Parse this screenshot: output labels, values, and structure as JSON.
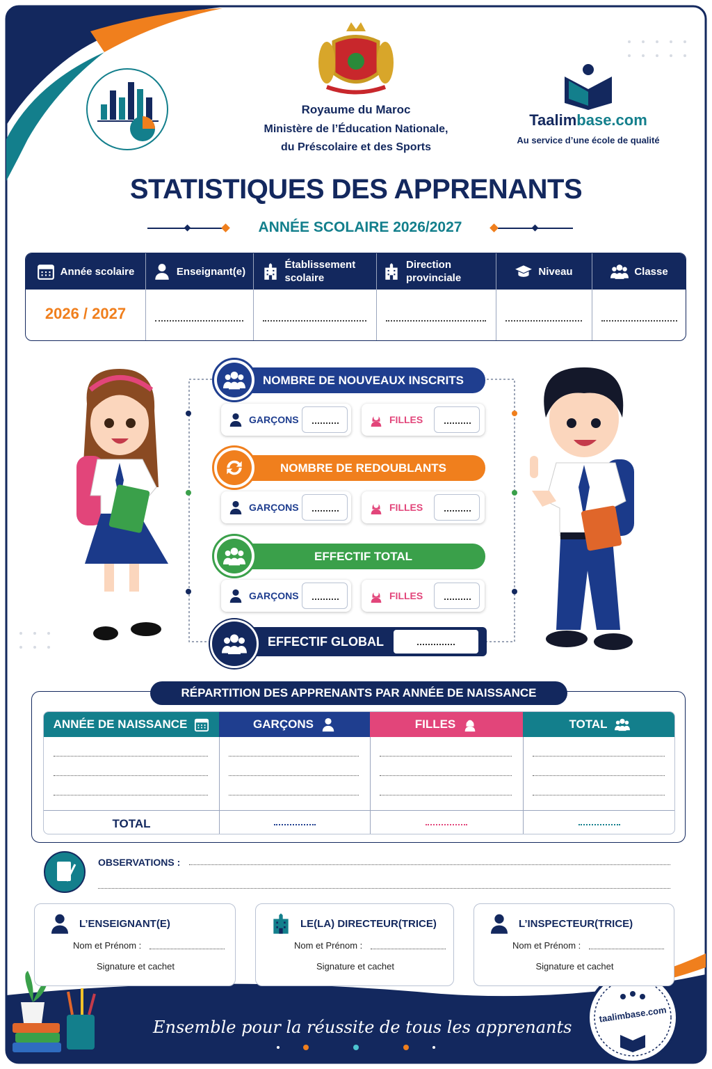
{
  "header": {
    "kingdom": "Royaume du Maroc",
    "ministry_line1": "Ministère de l’Éducation Nationale,",
    "ministry_line2": "du Préscolaire et des Sports"
  },
  "brand": {
    "name_part1": "Taalim",
    "name_part2": "base.com",
    "tagline": "Au service d’une école de qualité"
  },
  "title": "STATISTIQUES DES APPRENANTS",
  "subtitle": "ANNÉE SCOLAIRE 2026/2027",
  "info_table": {
    "headers": [
      "Année scolaire",
      "Enseignant(e)",
      "Établissement scolaire",
      "Direction provinciale",
      "Niveau",
      "Classe"
    ],
    "school_year_value": "2026 / 2027"
  },
  "counts": {
    "sections": [
      {
        "title": "NOMBRE DE NOUVEAUX INSCRITS",
        "boys_label": "GARÇONS",
        "girls_label": "FILLES"
      },
      {
        "title": "NOMBRE DE REDOUBLANTS",
        "boys_label": "GARÇONS",
        "girls_label": "FILLES"
      },
      {
        "title": "EFFECTIF TOTAL",
        "boys_label": "GARÇONS",
        "girls_label": "FILLES"
      }
    ],
    "global_label": "EFFECTIF GLOBAL"
  },
  "distribution": {
    "title": "RÉPARTITION DES APPRENANTS PAR ANNÉE DE NAISSANCE",
    "columns": [
      "ANNÉE DE NAISSANCE",
      "GARÇONS",
      "FILLES",
      "TOTAL"
    ],
    "total_label": "TOTAL"
  },
  "observations": {
    "label": "OBSERVATIONS :"
  },
  "signatures": [
    {
      "role": "L’ENSEIGNANT(E)",
      "name_label": "Nom et Prénom :",
      "signature_label": "Signature et cachet"
    },
    {
      "role": "LE(LA) DIRECTEUR(TRICE)",
      "name_label": "Nom et Prénom :",
      "signature_label": "Signature et cachet"
    },
    {
      "role": "L’INSPECTEUR(TRICE)",
      "name_label": "Nom et Prénom :",
      "signature_label": "Signature et cachet"
    }
  ],
  "footer": {
    "motto": "Ensemble pour la réussite de tous les apprenants",
    "badge": "taalimbase.com"
  }
}
